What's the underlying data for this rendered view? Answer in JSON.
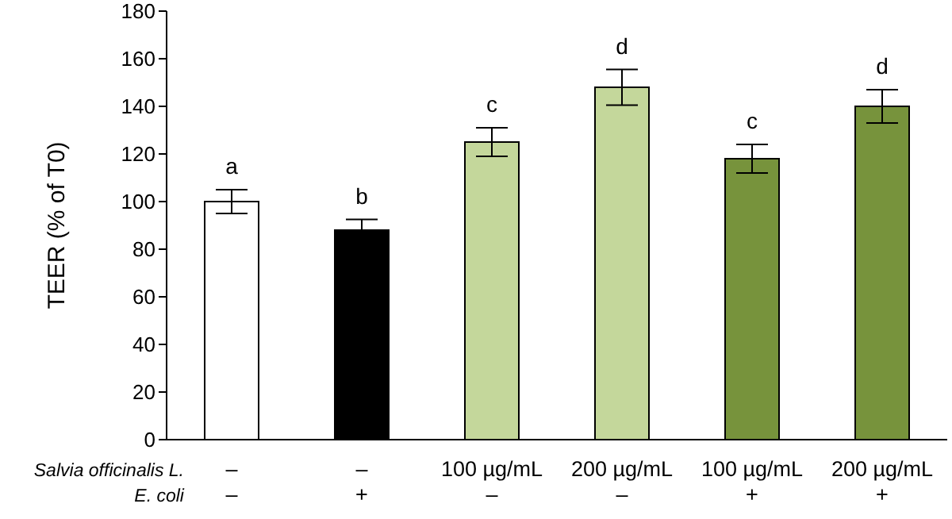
{
  "chart_data": {
    "type": "bar",
    "ylabel": "TEER (% of T0)",
    "categories": [
      null,
      null,
      null,
      null,
      null,
      null
    ],
    "values": [
      100,
      88,
      125,
      148,
      118,
      140
    ],
    "errors": [
      5,
      4.5,
      6,
      7.5,
      6,
      7
    ],
    "colors": [
      "#ffffff",
      "#000000",
      "#c4d79b",
      "#c4d79b",
      "#77933c",
      "#77933c"
    ],
    "value_labels": [
      "a",
      "b",
      "c",
      "d",
      "c",
      "d"
    ],
    "ylim": [
      0,
      180
    ],
    "yticks": [
      0,
      20,
      40,
      60,
      80,
      100,
      120,
      140,
      160,
      180
    ],
    "grid": false,
    "legend": false,
    "annotations": [
      "Salvia officinalis L.",
      "–",
      "–",
      "100 µg/mL",
      "200 µg/mL",
      "100 µg/mL",
      "200 µg/mL",
      "E. coli",
      "–",
      "+",
      "–",
      "–",
      "+",
      "+"
    ]
  }
}
